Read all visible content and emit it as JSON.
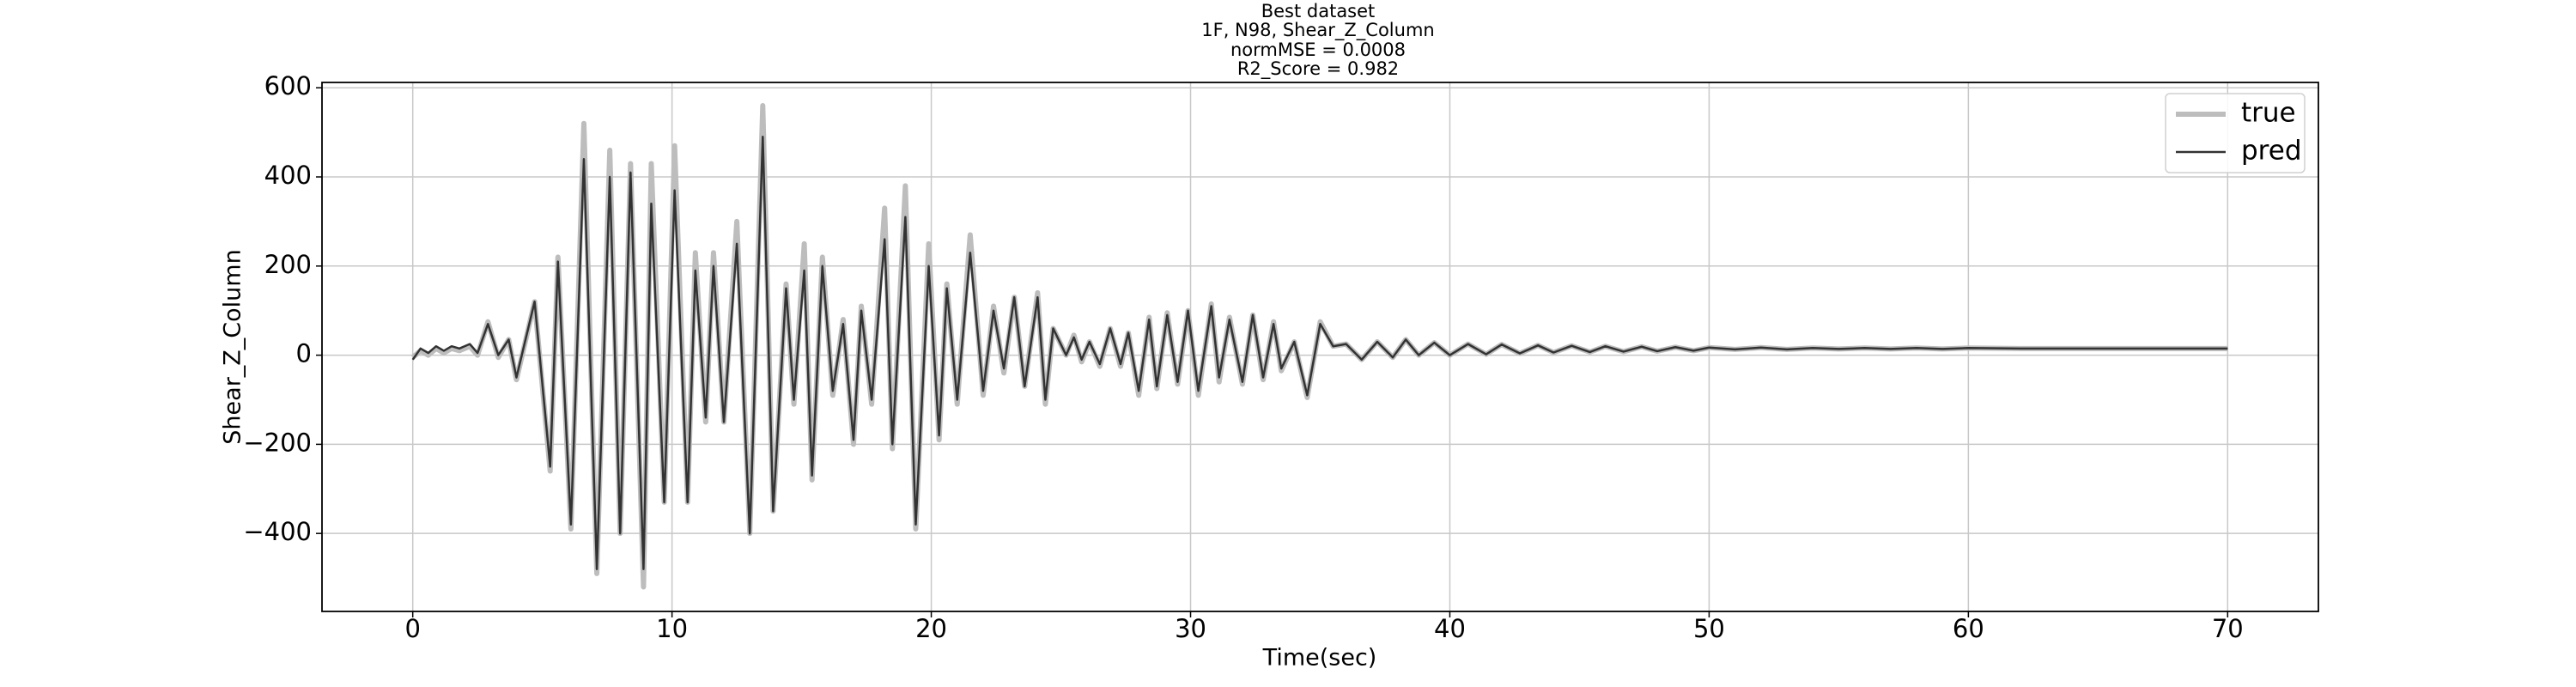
{
  "chart_data": {
    "type": "line",
    "title": "Best dataset",
    "subtitle": [
      "1F, N98, Shear_Z_Column",
      "normMSE = 0.0008",
      "R2_Score = 0.982"
    ],
    "xlabel": "Time(sec)",
    "ylabel": "Shear_Z_Column",
    "xlim": [
      -3.5,
      73.5
    ],
    "ylim": [
      -575,
      612
    ],
    "xticks": [
      0,
      10,
      20,
      30,
      40,
      50,
      60,
      70
    ],
    "yticks": [
      {
        "value": -400,
        "label": "−400"
      },
      {
        "value": -200,
        "label": "−200"
      },
      0,
      200,
      400,
      600
    ],
    "grid": true,
    "legend": "upper right",
    "x": [
      0,
      0.3,
      0.6,
      0.9,
      1.2,
      1.5,
      1.8,
      2.2,
      2.5,
      2.9,
      3.3,
      3.7,
      4.0,
      4.7,
      5.3,
      5.6,
      6.1,
      6.6,
      7.1,
      7.6,
      8.0,
      8.4,
      8.9,
      9.2,
      9.7,
      10.1,
      10.6,
      10.9,
      11.3,
      11.6,
      12.0,
      12.5,
      13.0,
      13.5,
      13.9,
      14.4,
      14.7,
      15.1,
      15.4,
      15.8,
      16.2,
      16.6,
      17.0,
      17.3,
      17.7,
      18.2,
      18.5,
      19.0,
      19.4,
      19.9,
      20.3,
      20.6,
      21.0,
      21.5,
      22.0,
      22.4,
      22.8,
      23.2,
      23.6,
      24.1,
      24.4,
      24.7,
      25.2,
      25.5,
      25.8,
      26.1,
      26.5,
      26.9,
      27.3,
      27.6,
      28.0,
      28.4,
      28.7,
      29.1,
      29.5,
      29.9,
      30.3,
      30.8,
      31.1,
      31.5,
      32.0,
      32.4,
      32.8,
      33.2,
      33.5,
      34.0,
      34.5,
      35.0,
      35.5,
      36.0,
      36.6,
      37.2,
      37.8,
      38.3,
      38.8,
      39.4,
      40.0,
      40.7,
      41.4,
      42.0,
      42.7,
      43.4,
      44.0,
      44.7,
      45.4,
      46.0,
      46.7,
      47.4,
      48.0,
      48.7,
      49.4,
      50.0,
      51,
      52,
      53,
      54,
      55,
      56,
      57,
      58,
      59,
      60,
      62,
      64,
      66,
      68,
      70
    ],
    "series": [
      {
        "name": "true",
        "color": "#bdbdbd",
        "values": [
          -5,
          10,
          0,
          15,
          5,
          15,
          10,
          20,
          0,
          75,
          -5,
          35,
          -55,
          120,
          -260,
          220,
          -390,
          520,
          -490,
          460,
          -400,
          430,
          -520,
          430,
          -330,
          470,
          -330,
          230,
          -150,
          230,
          -150,
          300,
          -400,
          560,
          -350,
          160,
          -110,
          250,
          -280,
          220,
          -90,
          80,
          -200,
          110,
          -110,
          330,
          -210,
          380,
          -390,
          250,
          -190,
          160,
          -110,
          270,
          -90,
          110,
          -40,
          130,
          -70,
          140,
          -110,
          60,
          0,
          45,
          -15,
          30,
          -25,
          60,
          -25,
          50,
          -90,
          85,
          -75,
          95,
          -65,
          100,
          -90,
          115,
          -60,
          85,
          -65,
          90,
          -55,
          75,
          -35,
          30,
          -95,
          75,
          20,
          25,
          -10,
          30,
          -5,
          35,
          0,
          28,
          0,
          25,
          2,
          24,
          4,
          22,
          6,
          21,
          7,
          20,
          8,
          19,
          9,
          18,
          10,
          17,
          13,
          17,
          13,
          16,
          14,
          16,
          14,
          16,
          14,
          16,
          15,
          15,
          15,
          15,
          15
        ]
      },
      {
        "name": "pred",
        "color": "#333333",
        "values": [
          -10,
          15,
          5,
          20,
          10,
          20,
          15,
          25,
          5,
          70,
          0,
          35,
          -50,
          120,
          -250,
          210,
          -380,
          440,
          -480,
          400,
          -400,
          410,
          -480,
          340,
          -330,
          370,
          -330,
          190,
          -140,
          200,
          -150,
          250,
          -400,
          490,
          -350,
          150,
          -100,
          190,
          -270,
          200,
          -80,
          70,
          -190,
          100,
          -100,
          260,
          -200,
          310,
          -380,
          200,
          -180,
          150,
          -100,
          230,
          -80,
          100,
          -30,
          130,
          -70,
          130,
          -100,
          60,
          0,
          40,
          -10,
          30,
          -20,
          60,
          -20,
          50,
          -80,
          80,
          -70,
          90,
          -60,
          100,
          -80,
          110,
          -50,
          80,
          -60,
          90,
          -50,
          70,
          -30,
          30,
          -90,
          70,
          20,
          25,
          -10,
          30,
          -5,
          35,
          0,
          28,
          0,
          25,
          2,
          24,
          4,
          22,
          6,
          21,
          7,
          20,
          8,
          19,
          9,
          18,
          10,
          17,
          13,
          17,
          13,
          16,
          14,
          16,
          14,
          16,
          14,
          16,
          15,
          15,
          15,
          15,
          15
        ]
      }
    ]
  }
}
